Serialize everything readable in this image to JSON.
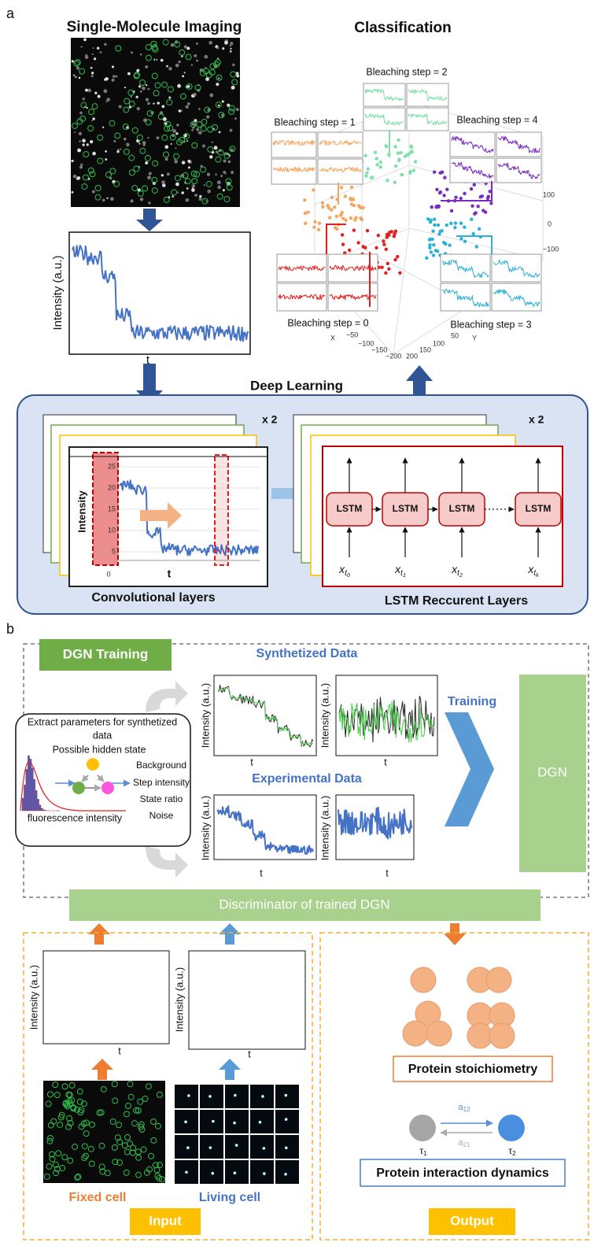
{
  "panel_a": {
    "label": "a",
    "imaging": {
      "title": "Single-Molecule Imaging",
      "y_label": "Intensity (a.u.)",
      "x_label": "t"
    },
    "classification": {
      "title": "Classification",
      "groups": [
        "Bleaching step = 0",
        "Bleaching step = 1",
        "Bleaching step = 2",
        "Bleaching step = 3",
        "Bleaching step = 4"
      ],
      "z_ticks": [
        "100",
        "0",
        "−100"
      ],
      "x_axis": "X",
      "x_ticks": [
        "−50",
        "−100",
        "−150",
        "−200"
      ],
      "y_axis": "Y",
      "y_ticks": [
        "50",
        "100",
        "150",
        "200"
      ]
    },
    "deep_learning": {
      "title": "Deep Learning",
      "conv": {
        "repeat": "x 2",
        "y_label": "Intensity",
        "x_label": "t",
        "ticks": [
          "25",
          "20",
          "15",
          "10",
          "5",
          "0"
        ],
        "caption": "Convolutional layers"
      },
      "lstm": {
        "repeat": "x 2",
        "cell": "LSTM",
        "inputs": [
          {
            "var": "x",
            "sub": "t",
            "index": "0"
          },
          {
            "var": "x",
            "sub": "t",
            "index": "1"
          },
          {
            "var": "x",
            "sub": "t",
            "index": "2"
          },
          {
            "var": "x",
            "sub": "t",
            "index": "k"
          }
        ],
        "caption": "LSTM Reccurent Layers"
      }
    }
  },
  "panel_b": {
    "label": "b",
    "training": {
      "title": "DGN Training",
      "synthetized": "Synthetized Data",
      "experimental": "Experimental Data",
      "parameters": {
        "title_lines": [
          "Extract parameters for synthetized",
          "data"
        ],
        "hidden_state": "Possible hidden state",
        "items": [
          "Background",
          "Step intensity",
          "State ratio",
          "Noise"
        ],
        "histogram_label": "fluorescence intensity"
      },
      "y_label": "Intensity (a.u.)",
      "x_label": "t",
      "training_label": "Training",
      "network": "DGN"
    },
    "discriminator": "Discriminator of trained DGN",
    "input": {
      "title": "Input",
      "fixed": "Fixed cell",
      "living": "Living cell"
    },
    "output": {
      "title": "Output",
      "stoichiometry": "Protein stoichiometry",
      "dynamics": "Protein interaction dynamics",
      "rate_forward": {
        "symbol": "a",
        "sub": "12"
      },
      "rate_back": {
        "symbol": "a",
        "sub": "21"
      },
      "state_1": {
        "symbol": "τ",
        "sub": "1"
      },
      "state_2": {
        "symbol": "τ",
        "sub": "2"
      }
    }
  }
}
